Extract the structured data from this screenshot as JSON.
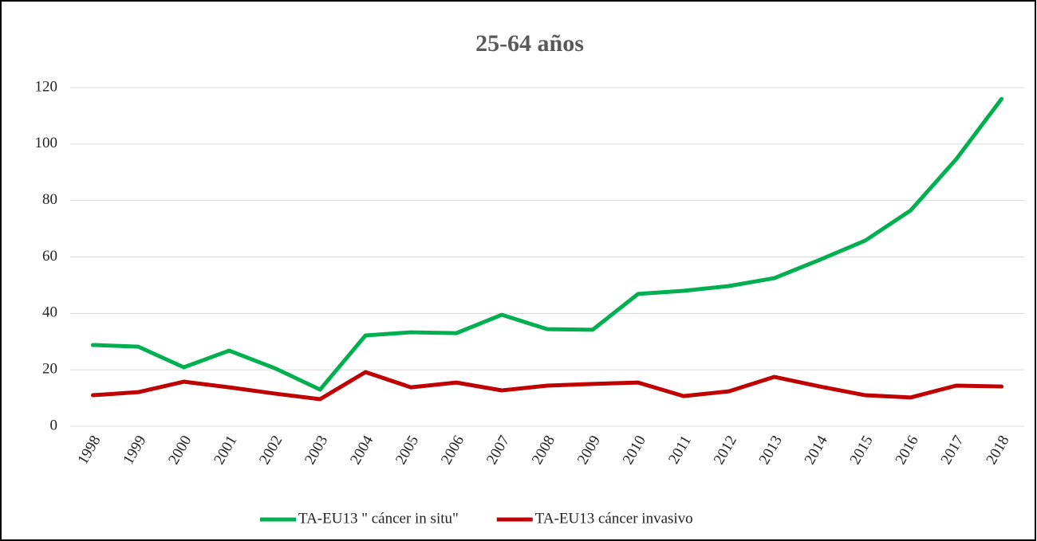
{
  "chart_data": {
    "type": "line",
    "title": "25-64 años",
    "categories": [
      "1998",
      "1999",
      "2000",
      "2001",
      "2002",
      "2003",
      "2004",
      "2005",
      "2006",
      "2007",
      "2008",
      "2009",
      "2010",
      "2011",
      "2012",
      "2013",
      "2014",
      "2015",
      "2016",
      "2017",
      "2018"
    ],
    "series": [
      {
        "name": "TA-EU13 \" cáncer in situ\"",
        "color": "#00b050",
        "values": [
          28.8,
          28.2,
          20.9,
          26.8,
          20.6,
          13,
          32.2,
          33.3,
          33,
          39.5,
          34.4,
          34.2,
          46.9,
          48,
          49.7,
          52.5,
          59,
          65.8,
          76.5,
          94.6,
          116
        ]
      },
      {
        "name": "TA-EU13 cáncer invasivo",
        "color": "#c00000",
        "values": [
          11,
          12.1,
          15.8,
          13.8,
          11.6,
          9.6,
          19.2,
          13.8,
          15.5,
          12.7,
          14.4,
          15,
          15.5,
          10.7,
          12.4,
          17.5,
          14.1,
          11,
          10.2,
          14.4,
          14.1
        ]
      }
    ],
    "ylim": [
      0,
      120
    ],
    "yticks": [
      0,
      20,
      40,
      60,
      80,
      100,
      120
    ],
    "grid": true,
    "legend": "bottom"
  }
}
